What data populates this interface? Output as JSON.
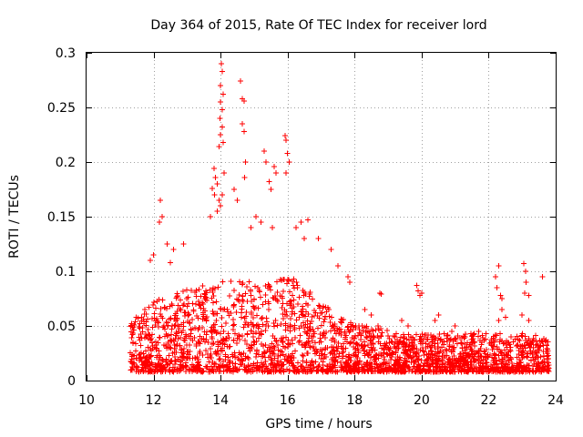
{
  "chart_data": {
    "type": "scatter",
    "title": "Day 364 of 2015, Rate Of TEC Index for receiver lord",
    "xlabel": "GPS time / hours",
    "ylabel": "ROTI / TECUs",
    "xlim": [
      10,
      24
    ],
    "ylim": [
      0,
      0.3
    ],
    "xticks": [
      10,
      12,
      14,
      16,
      18,
      20,
      22,
      24
    ],
    "yticks": [
      0,
      0.05,
      0.1,
      0.15,
      0.2,
      0.25,
      0.3
    ],
    "xtick_labels": [
      "10",
      "12",
      "14",
      "16",
      "18",
      "20",
      "22",
      "24"
    ],
    "ytick_labels": [
      "0",
      "0.05",
      "0.1",
      "0.15",
      "0.2",
      "0.25",
      "0.3"
    ],
    "grid": true,
    "marker": "+",
    "color": "#ff0000",
    "series": [
      {
        "name": "ROTI",
        "points": [
          [
            14.02,
            0.29
          ],
          [
            14.05,
            0.283
          ],
          [
            14.0,
            0.27
          ],
          [
            14.08,
            0.262
          ],
          [
            14.0,
            0.255
          ],
          [
            14.05,
            0.248
          ],
          [
            13.98,
            0.24
          ],
          [
            14.05,
            0.232
          ],
          [
            14.0,
            0.225
          ],
          [
            14.08,
            0.218
          ],
          [
            13.95,
            0.214
          ],
          [
            14.6,
            0.274
          ],
          [
            14.65,
            0.258
          ],
          [
            14.7,
            0.256
          ],
          [
            14.65,
            0.235
          ],
          [
            14.7,
            0.228
          ],
          [
            15.92,
            0.224
          ],
          [
            15.95,
            0.22
          ],
          [
            16.0,
            0.208
          ],
          [
            16.05,
            0.2
          ],
          [
            15.95,
            0.19
          ],
          [
            15.3,
            0.21
          ],
          [
            15.35,
            0.2
          ],
          [
            15.45,
            0.182
          ],
          [
            15.6,
            0.196
          ],
          [
            15.65,
            0.19
          ],
          [
            15.5,
            0.175
          ],
          [
            14.75,
            0.2
          ],
          [
            14.72,
            0.186
          ],
          [
            14.4,
            0.175
          ],
          [
            14.5,
            0.165
          ],
          [
            13.8,
            0.194
          ],
          [
            13.85,
            0.186
          ],
          [
            13.9,
            0.18
          ],
          [
            13.75,
            0.176
          ],
          [
            13.82,
            0.17
          ],
          [
            13.95,
            0.165
          ],
          [
            14.1,
            0.19
          ],
          [
            14.05,
            0.17
          ],
          [
            14.0,
            0.16
          ],
          [
            13.9,
            0.155
          ],
          [
            13.7,
            0.15
          ],
          [
            12.2,
            0.165
          ],
          [
            12.25,
            0.15
          ],
          [
            12.18,
            0.145
          ],
          [
            16.6,
            0.147
          ],
          [
            16.4,
            0.145
          ],
          [
            16.25,
            0.14
          ],
          [
            16.5,
            0.13
          ],
          [
            15.05,
            0.15
          ],
          [
            15.2,
            0.145
          ],
          [
            15.55,
            0.14
          ],
          [
            14.9,
            0.14
          ],
          [
            16.92,
            0.13
          ],
          [
            17.3,
            0.12
          ],
          [
            17.5,
            0.105
          ],
          [
            17.85,
            0.09
          ],
          [
            17.8,
            0.095
          ],
          [
            18.75,
            0.08
          ],
          [
            18.8,
            0.079
          ],
          [
            19.85,
            0.087
          ],
          [
            19.9,
            0.082
          ],
          [
            19.95,
            0.078
          ],
          [
            20.0,
            0.08
          ],
          [
            22.2,
            0.095
          ],
          [
            22.25,
            0.085
          ],
          [
            22.3,
            0.105
          ],
          [
            22.35,
            0.078
          ],
          [
            22.4,
            0.075
          ],
          [
            23.05,
            0.107
          ],
          [
            23.1,
            0.1
          ],
          [
            23.12,
            0.09
          ],
          [
            23.08,
            0.08
          ],
          [
            23.6,
            0.095
          ],
          [
            23.2,
            0.078
          ],
          [
            22.4,
            0.065
          ],
          [
            22.5,
            0.058
          ],
          [
            22.3,
            0.055
          ],
          [
            23.0,
            0.06
          ],
          [
            23.2,
            0.055
          ],
          [
            21.0,
            0.05
          ],
          [
            20.9,
            0.045
          ],
          [
            21.3,
            0.04
          ],
          [
            21.7,
            0.045
          ],
          [
            20.5,
            0.06
          ],
          [
            20.4,
            0.055
          ],
          [
            19.4,
            0.055
          ],
          [
            19.6,
            0.05
          ],
          [
            19.2,
            0.04
          ],
          [
            18.7,
            0.05
          ],
          [
            18.5,
            0.06
          ],
          [
            18.3,
            0.065
          ],
          [
            12.4,
            0.125
          ],
          [
            12.6,
            0.12
          ],
          [
            12.9,
            0.125
          ],
          [
            12.0,
            0.115
          ],
          [
            11.9,
            0.11
          ],
          [
            12.5,
            0.108
          ]
        ]
      }
    ]
  }
}
